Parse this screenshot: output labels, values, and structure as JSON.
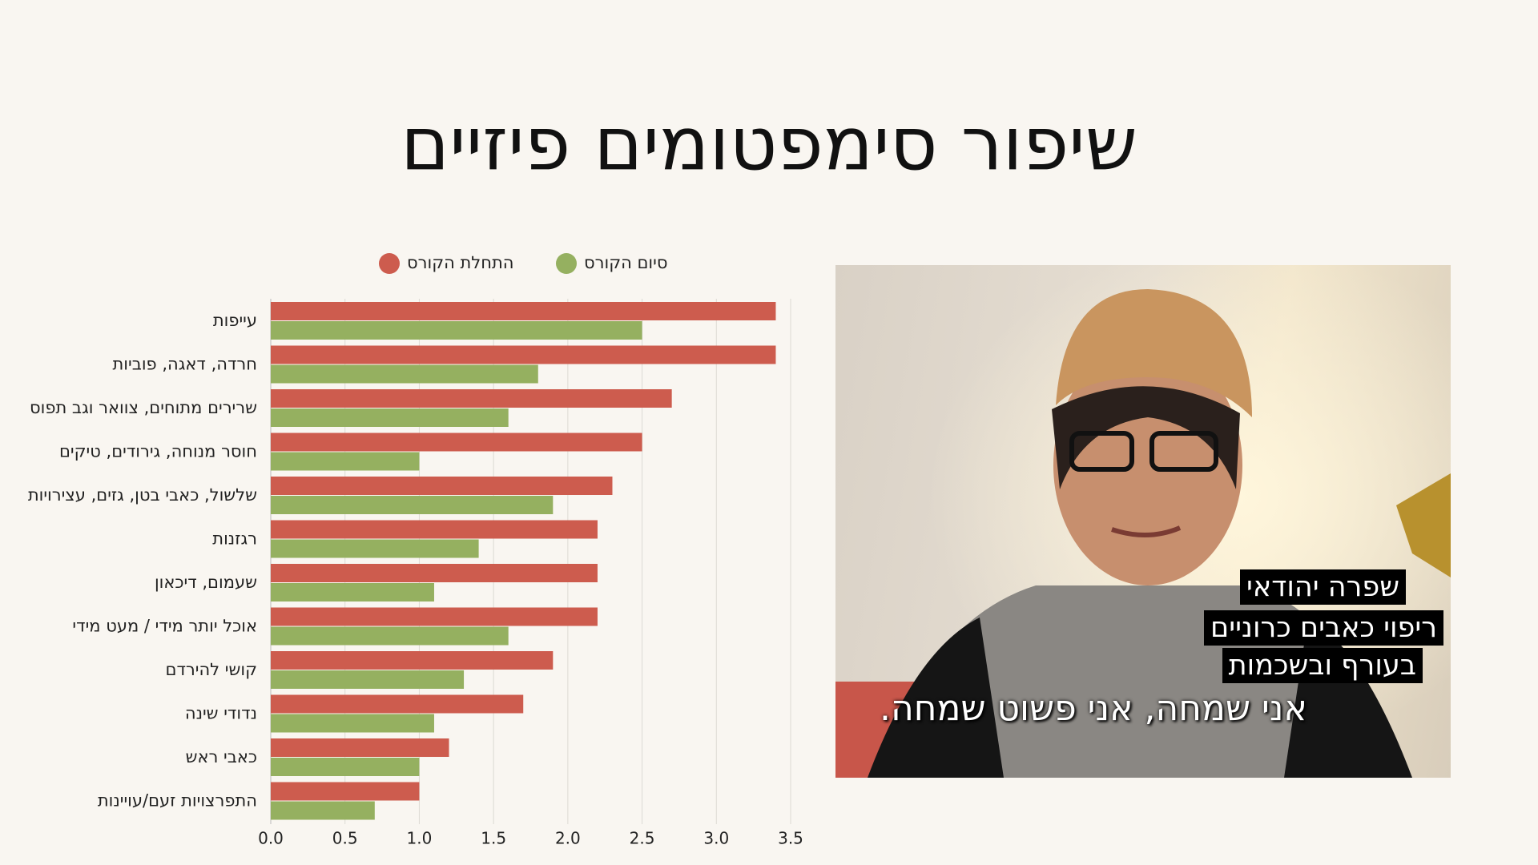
{
  "chart_data": {
    "type": "bar",
    "title": "שיפור סימפטומים פיזיים",
    "categories": [
      "עייפות",
      "חרדה, דאגה, פוביות",
      "שרירים מתוחים, צוואר וגב תפוס",
      "חוסר מנוחה, גירודים, טיקים",
      "שלשול, כאבי בטן, גזים, עצירויות",
      "רגזנות",
      "שעמום, דיכאון",
      "אוכל יותר מידי / מעט מידי",
      "קושי להירדם",
      "נדודי שינה",
      "כאבי ראש",
      "התפרצויות זעם/עויינות"
    ],
    "series": [
      {
        "name": "התחלת הקורס",
        "color": "#cd5c4e",
        "values": [
          3.4,
          3.4,
          2.7,
          2.5,
          2.3,
          2.2,
          2.2,
          2.2,
          1.9,
          1.7,
          1.2,
          1.0
        ]
      },
      {
        "name": "סיום הקורס",
        "color": "#95b060",
        "values": [
          2.5,
          1.8,
          1.6,
          1.0,
          1.9,
          1.4,
          1.1,
          1.6,
          1.3,
          1.1,
          1.0,
          0.7
        ]
      }
    ],
    "xlim": [
      0,
      3.5
    ],
    "xticks": [
      {
        "value": 0,
        "label": "0.0"
      },
      0.5,
      {
        "value": 1,
        "label": "1.0"
      },
      1.5,
      {
        "value": 2,
        "label": "2.0"
      },
      2.5,
      {
        "value": 3,
        "label": "3.0"
      },
      3.5
    ],
    "grid": true,
    "legend": "top"
  },
  "photo": {
    "captions": [
      "שפרה יהודאי",
      "ריפוי כאבים כרוניים",
      "בעורף ובשכמות"
    ],
    "subtitle": "אני שמחה, אני פשוט שמחה."
  }
}
